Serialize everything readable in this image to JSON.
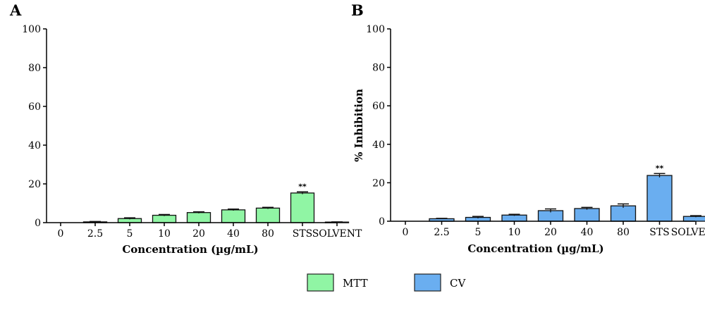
{
  "chart_data": [
    {
      "panel": "A",
      "type": "bar",
      "categories": [
        "0",
        "2.5",
        "5",
        "10",
        "20",
        "40",
        "80",
        "STS",
        "SOLVENT"
      ],
      "series": [
        {
          "name": "MTT",
          "values": [
            0,
            0.4,
            2.1,
            3.8,
            5.2,
            6.6,
            7.5,
            15.3,
            0.3
          ],
          "errors": [
            0,
            0.2,
            0.4,
            0.4,
            0.4,
            0.4,
            0.4,
            0.6,
            0.1
          ]
        }
      ],
      "annotations": [
        {
          "category": "STS",
          "text": "**"
        }
      ],
      "xlabel": "Concentration (µg/mL)",
      "ylabel": "",
      "ylim": [
        0,
        100
      ],
      "yticks": [
        "0",
        "20",
        "40",
        "60",
        "80",
        "100"
      ],
      "color": "#90f5a4"
    },
    {
      "panel": "B",
      "type": "bar",
      "categories": [
        "0",
        "2.5",
        "5",
        "10",
        "20",
        "40",
        "80",
        "STS",
        "SOLVENT"
      ],
      "series": [
        {
          "name": "CV",
          "values": [
            0,
            1.3,
            2.0,
            3.2,
            5.5,
            6.6,
            8.0,
            23.8,
            2.5
          ],
          "errors": [
            0,
            0.2,
            0.5,
            0.4,
            0.9,
            0.6,
            1.0,
            1.0,
            0.4
          ]
        }
      ],
      "annotations": [
        {
          "category": "STS",
          "text": "**"
        }
      ],
      "xlabel": "Concentration (µg/mL)",
      "ylabel": "% Inhibition",
      "ylim": [
        0,
        100
      ],
      "yticks": [
        "0",
        "20",
        "40",
        "60",
        "80",
        "100"
      ],
      "color": "#6aaef0"
    }
  ],
  "legend": [
    {
      "label": "MTT",
      "color": "#90f5a4"
    },
    {
      "label": "CV",
      "color": "#6aaef0"
    }
  ]
}
